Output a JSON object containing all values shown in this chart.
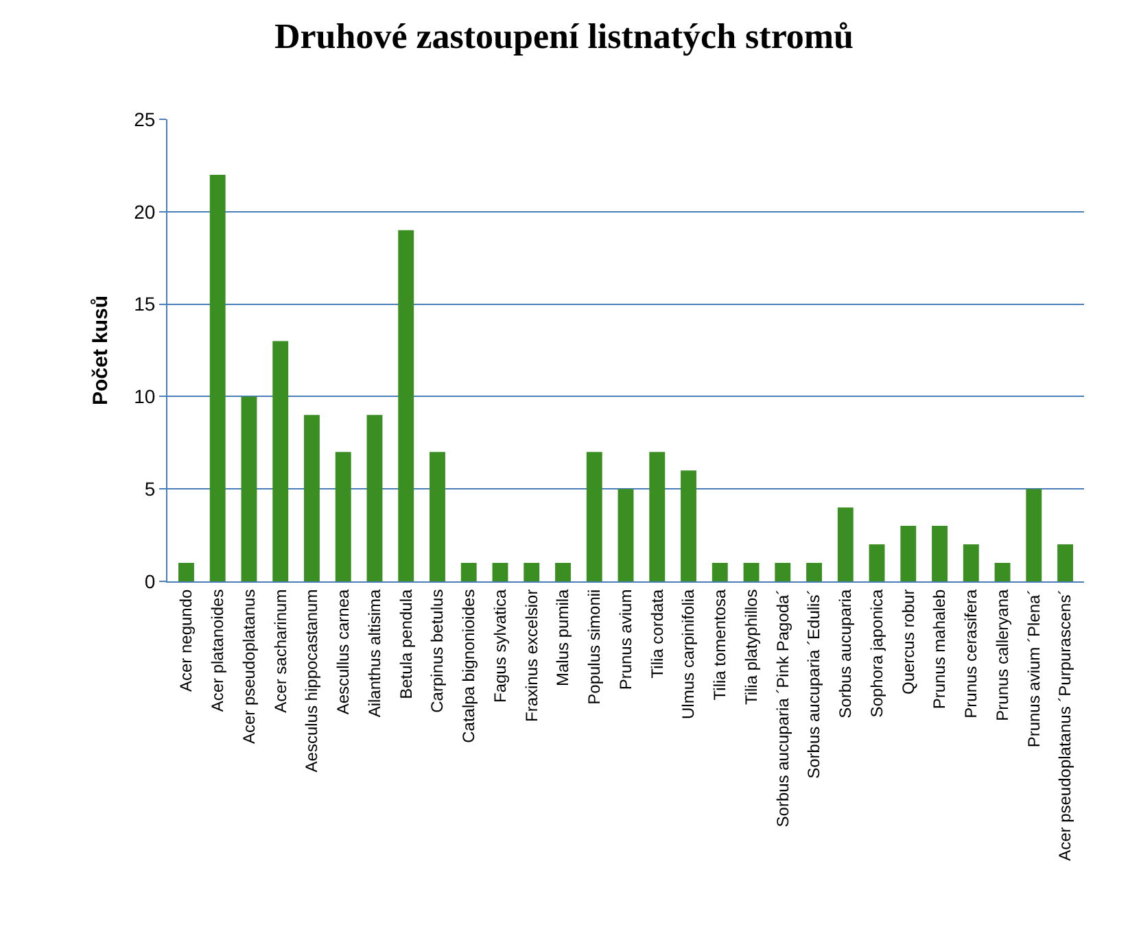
{
  "chart_data": {
    "type": "bar",
    "title": "Druhové zastoupení listnatých stromů",
    "ylabel": "Počet kusů",
    "categories": [
      "Acer negundo",
      "Acer platanoides",
      "Acer pseudoplatanus",
      "Acer sacharinum",
      "Aesculus hippocastanum",
      "Aescullus carnea",
      "Ailanthus altisima",
      "Betula pendula",
      "Carpinus betulus",
      "Catalpa bignonioides",
      "Fagus sylvatica",
      "Fraxinus excelsior",
      "Malus pumila",
      "Populus simonii",
      "Prunus avium",
      "Tilia cordata",
      "Ulmus carpinifolia",
      "Tilia tomentosa",
      "Tilia platyphillos",
      "Sorbus aucuparia ´Pink Pagoda´",
      "Sorbus aucuparia ´Edulis´",
      "Sorbus aucuparia",
      "Sophora japonica",
      "Quercus robur",
      "Prunus mahaleb",
      "Prunus cerasifera",
      "Prunus calleryana",
      "Prunus avium ´Plena´",
      "Acer pseudoplatanus ´Purpurascens´"
    ],
    "values": [
      1,
      22,
      10,
      13,
      9,
      7,
      9,
      19,
      7,
      1,
      1,
      1,
      1,
      7,
      5,
      7,
      6,
      1,
      1,
      1,
      1,
      4,
      2,
      3,
      3,
      2,
      1,
      5,
      2
    ],
    "color": "#3b8f22",
    "ylim": [
      0,
      25
    ],
    "yticks": [
      0,
      5,
      10,
      15,
      20,
      25
    ],
    "grid": "y"
  }
}
